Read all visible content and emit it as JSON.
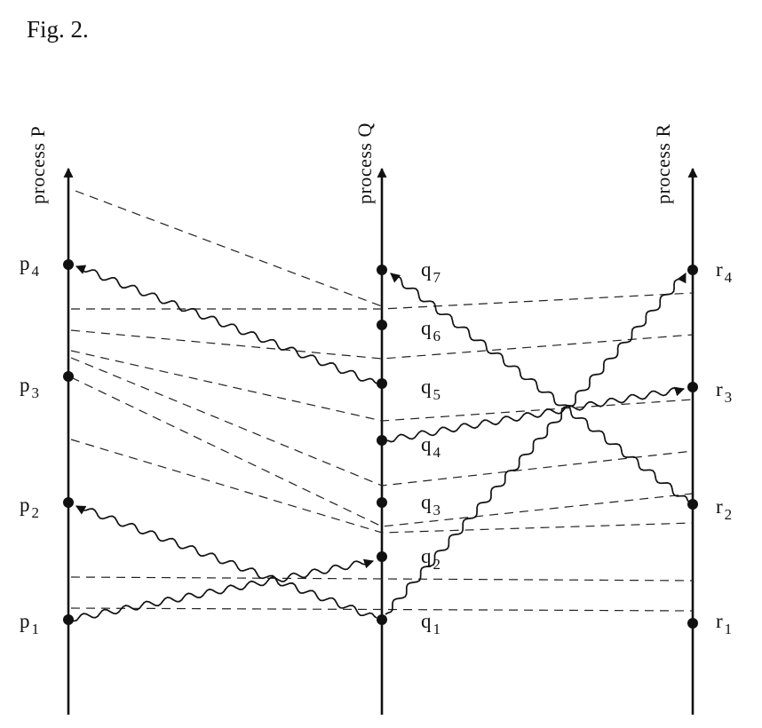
{
  "caption": "Fig. 2.",
  "processes": [
    {
      "label": "process P"
    },
    {
      "label": "process Q"
    },
    {
      "label": "process R"
    }
  ],
  "events": {
    "P": [
      {
        "letter": "p",
        "index": "1"
      },
      {
        "letter": "p",
        "index": "2"
      },
      {
        "letter": "p",
        "index": "3"
      },
      {
        "letter": "p",
        "index": "4"
      }
    ],
    "Q": [
      {
        "letter": "q",
        "index": "1"
      },
      {
        "letter": "q",
        "index": "2"
      },
      {
        "letter": "q",
        "index": "3"
      },
      {
        "letter": "q",
        "index": "4"
      },
      {
        "letter": "q",
        "index": "5"
      },
      {
        "letter": "q",
        "index": "6"
      },
      {
        "letter": "q",
        "index": "7"
      }
    ],
    "R": [
      {
        "letter": "r",
        "index": "1"
      },
      {
        "letter": "r",
        "index": "2"
      },
      {
        "letter": "r",
        "index": "3"
      },
      {
        "letter": "r",
        "index": "4"
      }
    ]
  },
  "colors": {
    "ink": "#111111",
    "background": "#ffffff"
  }
}
